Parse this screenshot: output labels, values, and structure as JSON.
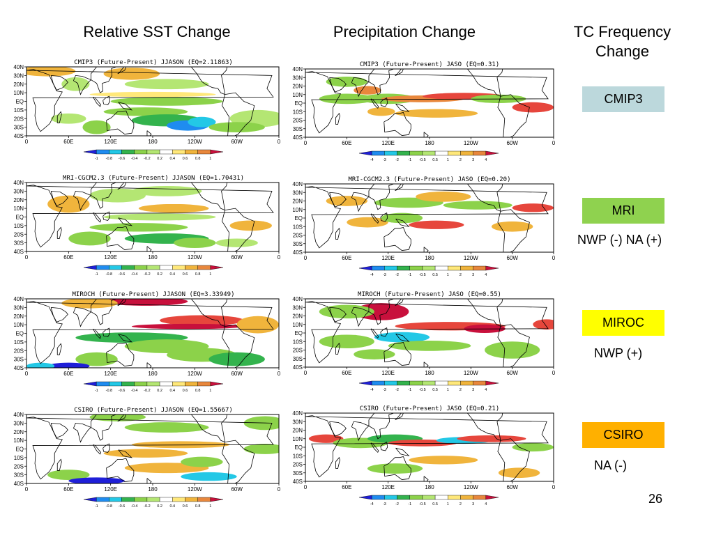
{
  "headers": {
    "sst": "Relative SST Change",
    "precip": "Precipitation Change",
    "tc": "TC Frequency Change"
  },
  "lat_labels": [
    "40N",
    "30N",
    "20N",
    "10N",
    "EQ",
    "10S",
    "20S",
    "30S",
    "40S"
  ],
  "lon_labels": [
    "0",
    "60E",
    "120E",
    "180",
    "120W",
    "60W",
    "0"
  ],
  "sst_colorbar": [
    "-1",
    "-0.8",
    "-0.6",
    "-0.4",
    "-0.2",
    "0.2",
    "0.4",
    "0.6",
    "0.8",
    "1"
  ],
  "precip_colorbar": [
    "-4",
    "-3",
    "-2",
    "-1",
    "-0.5",
    "0.5",
    "1",
    "2",
    "3",
    "4"
  ],
  "colors": {
    "scale": [
      "#1f1fd8",
      "#1f8cf0",
      "#23c8e6",
      "#33b34d",
      "#8cd24a",
      "#b4e673",
      "#ffffff",
      "#ffe87a",
      "#f0b43c",
      "#e8873c",
      "#e6463c",
      "#c8103c"
    ],
    "cmip3_tag": "#bcd8dc",
    "mri_tag": "#8fd24f",
    "miroc_tag": "#ffff00",
    "csiro_tag": "#ffb000"
  },
  "models": [
    {
      "sst_title": "CMIP3 (Future-Present) JJASON (EQ=2.11863)",
      "precip_title": "CMIP3 (Future-Present) JASO (EQ=0.31)",
      "tag": "CMIP3",
      "note": ""
    },
    {
      "sst_title": "MRI-CGCM2.3 (Future-Present) JJASON (EQ=1.70431)",
      "precip_title": "MRI-CGCM2.3 (Future-Present) JASO (EQ=0.20)",
      "tag": "MRI",
      "note": "NWP  (-)  NA  (+)"
    },
    {
      "sst_title": "MIROCH (Future-Present) JJASON (EQ=3.33949)",
      "precip_title": "MIROCH (Future-Present) JASO (EQ=0.55)",
      "tag": "MIROC",
      "note": "NWP  (+)"
    },
    {
      "sst_title": "CSIRO (Future-Present) JJASON (EQ=1.55667)",
      "precip_title": "CSIRO (Future-Present) JASO (EQ=0.21)",
      "tag": "CSIRO",
      "note": "NA  (-)"
    }
  ],
  "page_number": "26"
}
